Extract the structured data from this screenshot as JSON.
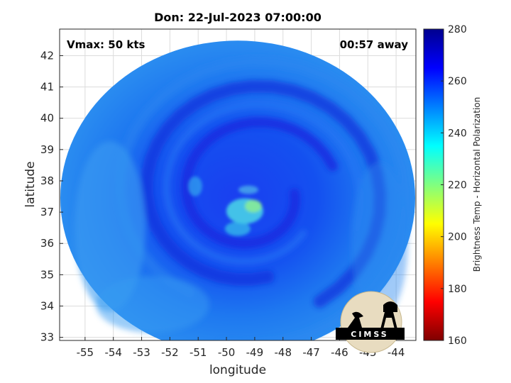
{
  "header": {
    "title": "Don: 22-Jul-2023 07:00:00",
    "vmax": "Vmax: 50 kts",
    "time_away": "00:57 away"
  },
  "map": {
    "xlabel": "longitude",
    "ylabel": "latitude",
    "xlim": [
      -55.9,
      -43.3
    ],
    "ylim": [
      32.9,
      42.85
    ],
    "x_ticks": [
      -55,
      -54,
      -53,
      -52,
      -51,
      -50,
      -49,
      -48,
      -47,
      -46,
      -45,
      -44
    ],
    "y_ticks": [
      33,
      34,
      35,
      36,
      37,
      38,
      39,
      40,
      41,
      42
    ],
    "grid": true,
    "storm_center": {
      "lon": -49.1,
      "lat": 37.6
    },
    "swath_center": {
      "lon": -49.6,
      "lat": 37.45
    }
  },
  "colorbar": {
    "label": "Brightness Temp - Horizontal Polarization",
    "min": 160,
    "max": 280,
    "ticks": [
      160,
      180,
      200,
      220,
      240,
      260,
      280
    ],
    "colormap": "jet",
    "colors": [
      "#7f0000",
      "#ff0000",
      "#ff8000",
      "#ffff00",
      "#80ff80",
      "#00ffff",
      "#0080ff",
      "#0000ff",
      "#00008f"
    ]
  },
  "logo": {
    "text": "CIMSS"
  }
}
